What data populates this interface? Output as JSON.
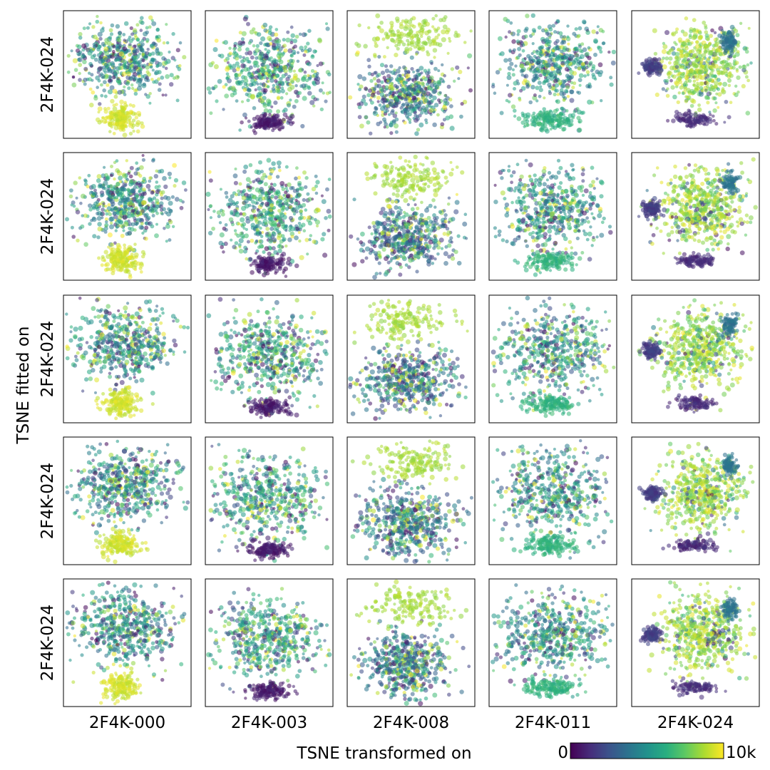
{
  "chart_data": {
    "type": "scatter",
    "layout": "5x5 grid of t-SNE embedding panels, points colored by frame index",
    "row_labels": [
      "2F4K-024",
      "2F4K-024",
      "2F4K-024",
      "2F4K-024",
      "2F4K-024"
    ],
    "column_labels": [
      "2F4K-000",
      "2F4K-003",
      "2F4K-008",
      "2F4K-011",
      "2F4K-024"
    ],
    "ylabel": "TSNE fitted on",
    "xlabel": "TSNE transformed on",
    "colorbar": {
      "colormap": "viridis",
      "min_label": "0",
      "max_label": "10k",
      "range": [
        0,
        10000
      ]
    },
    "axes": {
      "ticks": false,
      "grid": false
    },
    "panel_structure": {
      "2F4K-000": {
        "main_cluster_value": 5000,
        "separate_cluster": {
          "position": "bottom-center",
          "value": 9300
        }
      },
      "2F4K-003": {
        "main_cluster_value": 6000,
        "separate_cluster": {
          "position": "bottom-center",
          "value": 700
        }
      },
      "2F4K-008": {
        "separate_cluster": {
          "position": "top",
          "value": 8600
        },
        "lower_region_value": 3500
      },
      "2F4K-011": {
        "main_cluster_value": 5000,
        "separate_cluster": {
          "position": "bottom",
          "value": 6400
        }
      },
      "2F4K-024": {
        "main_cluster_value": 8500,
        "side_clusters": [
          {
            "position": "left",
            "value": 1800
          },
          {
            "position": "bottom",
            "value": 1200
          },
          {
            "position": "top-right",
            "value": 3800
          }
        ]
      }
    }
  }
}
